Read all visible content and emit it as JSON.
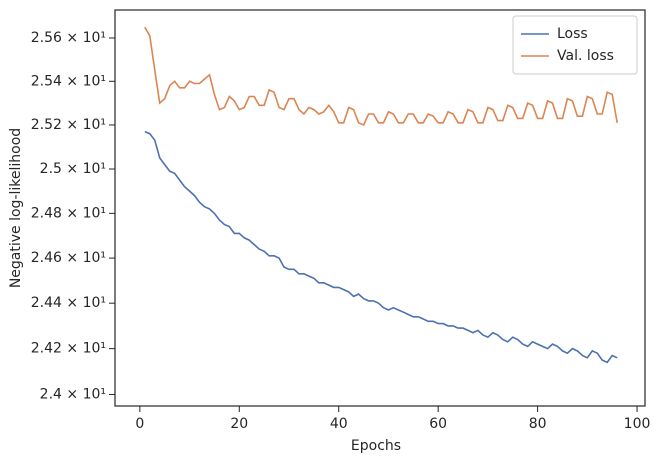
{
  "chart_data": {
    "type": "line",
    "log_y": true,
    "legend": "upper right",
    "x_label": "Epochs",
    "y_label": "Negative log-likelihood",
    "x": [
      1,
      2,
      3,
      4,
      5,
      6,
      7,
      8,
      9,
      10,
      11,
      12,
      13,
      14,
      15,
      16,
      17,
      18,
      19,
      20,
      21,
      22,
      23,
      24,
      25,
      26,
      27,
      28,
      29,
      30,
      31,
      32,
      33,
      34,
      35,
      36,
      37,
      38,
      39,
      40,
      41,
      42,
      43,
      44,
      45,
      46,
      47,
      48,
      49,
      50,
      51,
      52,
      53,
      54,
      55,
      56,
      57,
      58,
      59,
      60,
      61,
      62,
      63,
      64,
      65,
      66,
      67,
      68,
      69,
      70,
      71,
      72,
      73,
      74,
      75,
      76,
      77,
      78,
      79,
      80,
      81,
      82,
      83,
      84,
      85,
      86,
      87,
      88,
      89,
      90,
      91,
      92,
      93,
      94,
      95,
      96
    ],
    "series": [
      {
        "name": "Loss",
        "color": "#4c72b0",
        "values": [
          25.17,
          25.16,
          25.13,
          25.05,
          25.02,
          24.99,
          24.98,
          24.95,
          24.92,
          24.9,
          24.88,
          24.85,
          24.83,
          24.82,
          24.8,
          24.77,
          24.75,
          24.74,
          24.71,
          24.71,
          24.69,
          24.68,
          24.66,
          24.64,
          24.63,
          24.61,
          24.61,
          24.6,
          24.56,
          24.55,
          24.55,
          24.53,
          24.53,
          24.52,
          24.51,
          24.49,
          24.49,
          24.48,
          24.47,
          24.47,
          24.46,
          24.45,
          24.43,
          24.44,
          24.42,
          24.41,
          24.41,
          24.4,
          24.38,
          24.37,
          24.38,
          24.37,
          24.36,
          24.35,
          24.34,
          24.34,
          24.33,
          24.32,
          24.32,
          24.31,
          24.31,
          24.3,
          24.3,
          24.29,
          24.29,
          24.28,
          24.27,
          24.28,
          24.26,
          24.25,
          24.27,
          24.26,
          24.24,
          24.23,
          24.25,
          24.24,
          24.22,
          24.21,
          24.23,
          24.22,
          24.21,
          24.2,
          24.22,
          24.21,
          24.19,
          24.18,
          24.2,
          24.19,
          24.17,
          24.16,
          24.19,
          24.18,
          24.15,
          24.14,
          24.17,
          24.16
        ]
      },
      {
        "name": "Val. loss",
        "color": "#dd8452",
        "values": [
          25.65,
          25.61,
          25.45,
          25.3,
          25.32,
          25.38,
          25.4,
          25.37,
          25.37,
          25.4,
          25.39,
          25.39,
          25.41,
          25.43,
          25.34,
          25.27,
          25.28,
          25.33,
          25.31,
          25.27,
          25.28,
          25.33,
          25.33,
          25.29,
          25.29,
          25.36,
          25.35,
          25.28,
          25.27,
          25.32,
          25.32,
          25.27,
          25.25,
          25.28,
          25.27,
          25.25,
          25.26,
          25.29,
          25.26,
          25.21,
          25.21,
          25.28,
          25.27,
          25.21,
          25.2,
          25.25,
          25.25,
          25.21,
          25.21,
          25.26,
          25.25,
          25.21,
          25.21,
          25.25,
          25.25,
          25.21,
          25.21,
          25.25,
          25.24,
          25.21,
          25.21,
          25.26,
          25.25,
          25.21,
          25.21,
          25.27,
          25.26,
          25.21,
          25.21,
          25.28,
          25.27,
          25.22,
          25.22,
          25.29,
          25.28,
          25.23,
          25.23,
          25.3,
          25.29,
          25.23,
          25.23,
          25.31,
          25.3,
          25.23,
          25.23,
          25.32,
          25.31,
          25.24,
          25.24,
          25.33,
          25.32,
          25.25,
          25.25,
          25.35,
          25.34,
          25.21
        ]
      }
    ],
    "xlim": [
      -5,
      101.6
    ],
    "xticks": [
      0,
      20,
      40,
      60,
      80,
      100
    ],
    "ylim": [
      23.95,
      25.73
    ],
    "yticks": [
      {
        "value": 24.0,
        "label": "2.4 × 10¹"
      },
      {
        "value": 24.2,
        "label": "2.42 × 10¹"
      },
      {
        "value": 24.4,
        "label": "2.44 × 10¹"
      },
      {
        "value": 24.6,
        "label": "2.46 × 10¹"
      },
      {
        "value": 24.8,
        "label": "2.48 × 10¹"
      },
      {
        "value": 25.0,
        "label": "2.5 × 10¹"
      },
      {
        "value": 25.2,
        "label": "2.52 × 10¹"
      },
      {
        "value": 25.4,
        "label": "2.54 × 10¹"
      },
      {
        "value": 25.6,
        "label": "2.56 × 10¹"
      }
    ]
  }
}
